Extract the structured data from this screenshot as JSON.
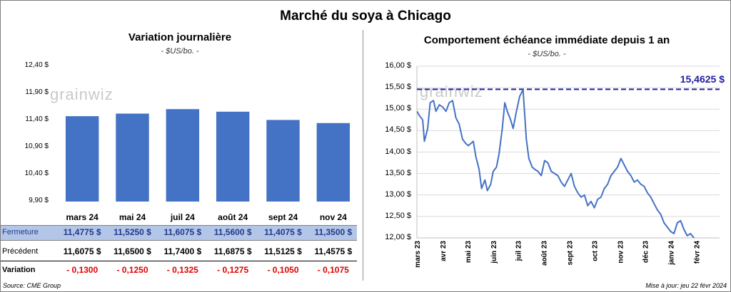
{
  "title": "Marché du soya à Chicago",
  "watermark": "grainwiz",
  "left_panel": {
    "title": "Variation  journalière",
    "unit": "- $US/bo. -",
    "rows": {
      "close_label": "Fermeture",
      "prev_label": "Précédent",
      "var_label": "Variation",
      "close": [
        "11,4775  $",
        "11,5250  $",
        "11,6075  $",
        "11,5600  $",
        "11,4075  $",
        "11,3500  $"
      ],
      "prev": [
        "11,6075  $",
        "11,6500  $",
        "11,7400  $",
        "11,6875  $",
        "11,5125  $",
        "11,4575  $"
      ],
      "var": [
        "- 0,1300",
        "- 0,1250",
        "- 0,1325",
        "- 0,1275",
        "- 0,1050",
        "- 0,1075"
      ]
    }
  },
  "right_panel": {
    "title": "Comportement  échéance immédiate depuis 1 an",
    "unit": "- $US/bo. -"
  },
  "footer": {
    "source": "Source: CME Group",
    "updated": "Mise à jour: jeu 22 févr 2024"
  },
  "colors": {
    "bar": "#4472c4",
    "line": "#4472c4",
    "ref": "#1f1fa0",
    "negative": "#e00000",
    "band": "#b4c6e7"
  },
  "chart_data": [
    {
      "type": "bar",
      "categories": [
        "mars 24",
        "mai 24",
        "juil 24",
        "août 24",
        "sept 24",
        "nov 24"
      ],
      "values": [
        11.4775,
        11.525,
        11.6075,
        11.56,
        11.4075,
        11.35
      ],
      "ylim": [
        9.9,
        12.4
      ],
      "yticks": [
        9.9,
        10.4,
        10.9,
        11.4,
        11.9,
        12.4
      ],
      "ytick_labels": [
        "9,90 $",
        "10,40 $",
        "10,90 $",
        "11,40 $",
        "11,90 $",
        "12,40 $"
      ],
      "title": "Variation  journalière",
      "ylabel": "- $US/bo. -"
    },
    {
      "type": "line",
      "title": "Comportement  échéance immédiate depuis 1 an",
      "ylabel": "- $US/bo. -",
      "ylim": [
        12.0,
        16.0
      ],
      "yticks": [
        12.0,
        12.5,
        13.0,
        13.5,
        14.0,
        14.5,
        15.0,
        15.5,
        16.0
      ],
      "ytick_labels": [
        "12,00 $",
        "12,50 $",
        "13,00 $",
        "13,50 $",
        "14,00 $",
        "14,50 $",
        "15,00 $",
        "15,50 $",
        "16,00 $"
      ],
      "xlim": [
        "2023-03-01",
        "2024-02-29"
      ],
      "xticks": [
        "2023-03-01",
        "2023-04-01",
        "2023-05-01",
        "2023-06-01",
        "2023-07-01",
        "2023-08-01",
        "2023-09-01",
        "2023-10-01",
        "2023-11-01",
        "2023-12-01",
        "2024-01-01",
        "2024-02-01"
      ],
      "xtick_labels": [
        "mars 23",
        "avr 23",
        "mai 23",
        "juin 23",
        "juil 23",
        "août 23",
        "sept 23",
        "oct 23",
        "nov 23",
        "déc 23",
        "janv 24",
        "févr 24"
      ],
      "reference_line": {
        "value": 15.4625,
        "label": "15,4625  $"
      },
      "series": [
        {
          "x": [
            "2023-03-01",
            "2023-03-04",
            "2023-03-08",
            "2023-03-10",
            "2023-03-14",
            "2023-03-17",
            "2023-03-21",
            "2023-03-24",
            "2023-03-28",
            "2023-04-01",
            "2023-04-05",
            "2023-04-09",
            "2023-04-13",
            "2023-04-17",
            "2023-04-21",
            "2023-04-25",
            "2023-04-29",
            "2023-05-02",
            "2023-05-05",
            "2023-05-08",
            "2023-05-11",
            "2023-05-15",
            "2023-05-18",
            "2023-05-22",
            "2023-05-25",
            "2023-05-29",
            "2023-06-01",
            "2023-06-05",
            "2023-06-08",
            "2023-06-12",
            "2023-06-15",
            "2023-06-18",
            "2023-06-22",
            "2023-06-25",
            "2023-06-29",
            "2023-07-03",
            "2023-07-07",
            "2023-07-11",
            "2023-07-14",
            "2023-07-18",
            "2023-07-21",
            "2023-07-25",
            "2023-07-29",
            "2023-08-02",
            "2023-08-06",
            "2023-08-10",
            "2023-08-14",
            "2023-08-18",
            "2023-08-22",
            "2023-08-26",
            "2023-08-30",
            "2023-09-03",
            "2023-09-07",
            "2023-09-11",
            "2023-09-15",
            "2023-09-19",
            "2023-09-23",
            "2023-09-27",
            "2023-10-01",
            "2023-10-05",
            "2023-10-09",
            "2023-10-13",
            "2023-10-17",
            "2023-10-21",
            "2023-10-25",
            "2023-10-29",
            "2023-11-02",
            "2023-11-06",
            "2023-11-10",
            "2023-11-14",
            "2023-11-18",
            "2023-11-22",
            "2023-11-26",
            "2023-11-30",
            "2023-12-04",
            "2023-12-08",
            "2023-12-12",
            "2023-12-16",
            "2023-12-20",
            "2023-12-24",
            "2023-12-28",
            "2024-01-01",
            "2024-01-05",
            "2024-01-09",
            "2024-01-13",
            "2024-01-17",
            "2024-01-21",
            "2024-01-25",
            "2024-01-29",
            "2024-02-02",
            "2024-02-06",
            "2024-02-10",
            "2024-02-14",
            "2024-02-18",
            "2024-02-22"
          ],
          "y": [
            14.95,
            14.85,
            14.75,
            14.25,
            14.55,
            15.15,
            15.2,
            14.95,
            15.1,
            15.05,
            14.95,
            15.15,
            15.2,
            14.8,
            14.65,
            14.3,
            14.2,
            14.15,
            14.2,
            14.25,
            13.9,
            13.6,
            13.15,
            13.35,
            13.1,
            13.25,
            13.55,
            13.65,
            13.95,
            14.55,
            15.15,
            14.95,
            14.75,
            14.55,
            14.95,
            15.3,
            15.45,
            14.3,
            13.85,
            13.65,
            13.6,
            13.55,
            13.45,
            13.8,
            13.75,
            13.55,
            13.5,
            13.45,
            13.3,
            13.2,
            13.35,
            13.5,
            13.2,
            13.05,
            12.95,
            13.0,
            12.75,
            12.85,
            12.7,
            12.9,
            12.95,
            13.15,
            13.25,
            13.45,
            13.55,
            13.65,
            13.85,
            13.7,
            13.55,
            13.45,
            13.3,
            13.35,
            13.25,
            13.2,
            13.05,
            12.95,
            12.8,
            12.65,
            12.55,
            12.35,
            12.25,
            12.15,
            12.1,
            12.35,
            12.4,
            12.2,
            12.05,
            12.1,
            12.0,
            11.95,
            11.9,
            11.85,
            11.8,
            11.75,
            11.7
          ]
        }
      ]
    }
  ]
}
